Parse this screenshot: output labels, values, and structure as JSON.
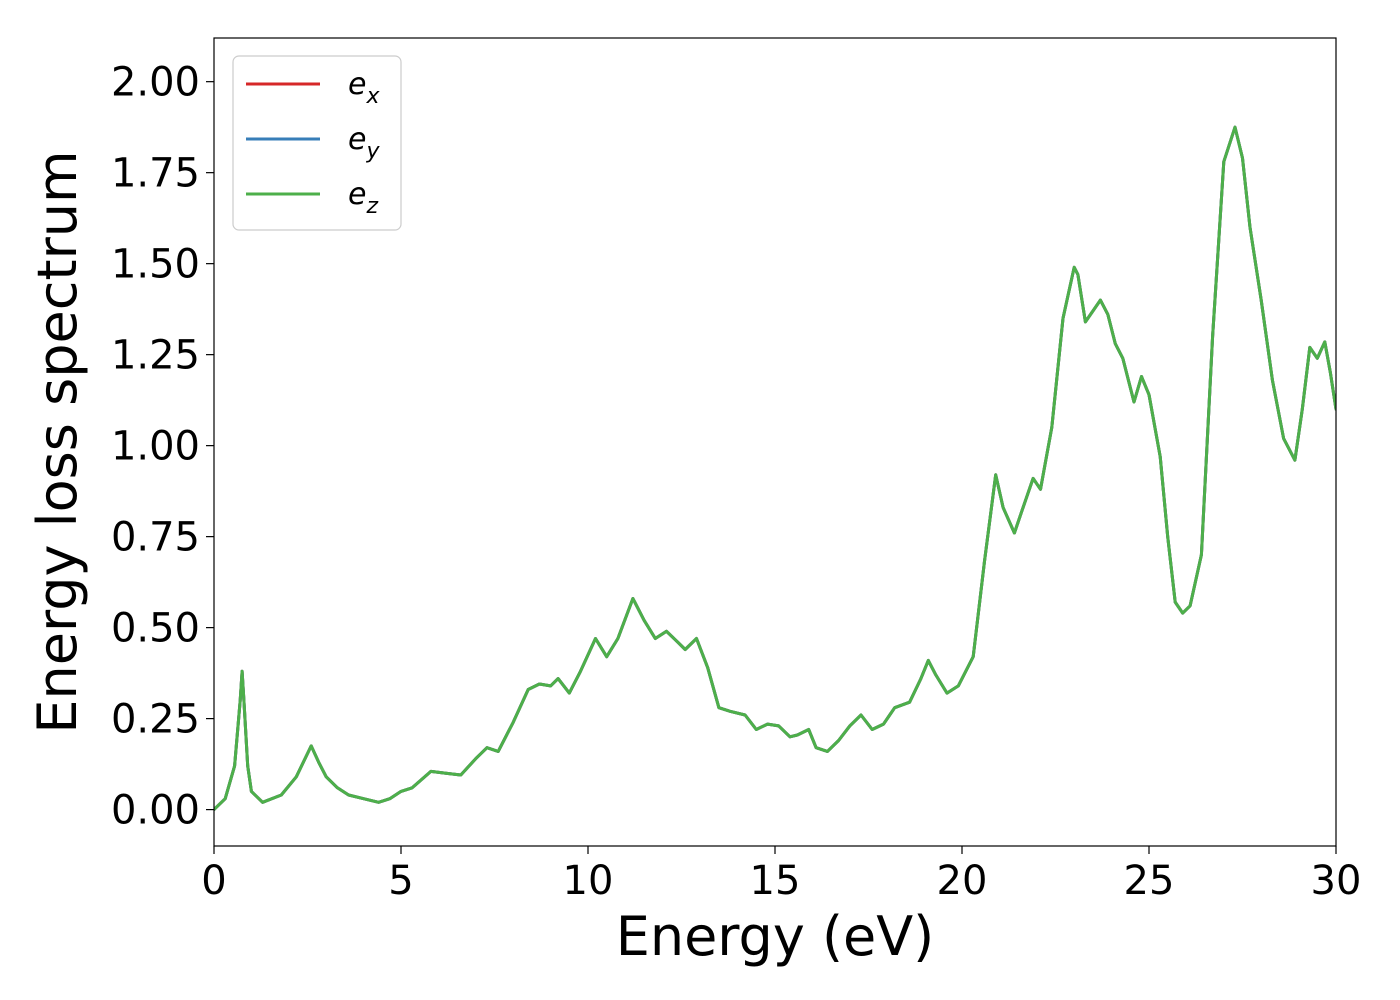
{
  "chart_data": {
    "type": "line",
    "xlabel": "Energy (eV)",
    "ylabel": "Energy loss spectrum",
    "xlim": [
      0,
      30
    ],
    "ylim": [
      -0.1,
      2.12
    ],
    "x_ticks": [
      "0",
      "5",
      "10",
      "15",
      "20",
      "25",
      "30"
    ],
    "y_ticks": [
      "0.00",
      "0.25",
      "0.50",
      "0.75",
      "1.00",
      "1.25",
      "1.50",
      "1.75",
      "2.00"
    ],
    "grid": false,
    "legend_position": "top-left",
    "x": [
      0,
      0.3,
      0.55,
      0.7,
      0.75,
      0.8,
      0.9,
      1.0,
      1.3,
      1.8,
      2.2,
      2.6,
      2.8,
      3.0,
      3.3,
      3.6,
      4.0,
      4.4,
      4.7,
      5.0,
      5.3,
      5.8,
      6.2,
      6.6,
      7.0,
      7.3,
      7.6,
      8.0,
      8.4,
      8.7,
      9.0,
      9.2,
      9.5,
      9.8,
      10.2,
      10.5,
      10.8,
      11.2,
      11.5,
      11.8,
      12.1,
      12.4,
      12.6,
      12.9,
      13.2,
      13.5,
      13.8,
      14.2,
      14.5,
      14.8,
      15.1,
      15.4,
      15.6,
      15.9,
      16.1,
      16.4,
      16.7,
      17.0,
      17.3,
      17.6,
      17.9,
      18.2,
      18.6,
      18.9,
      19.1,
      19.3,
      19.6,
      19.9,
      20.3,
      20.6,
      20.9,
      21.1,
      21.4,
      21.6,
      21.9,
      22.1,
      22.4,
      22.7,
      23.0,
      23.1,
      23.3,
      23.5,
      23.7,
      23.9,
      24.1,
      24.3,
      24.6,
      24.8,
      25.0,
      25.3,
      25.5,
      25.7,
      25.9,
      26.1,
      26.4,
      26.7,
      27.0,
      27.3,
      27.5,
      27.7,
      28.0,
      28.3,
      28.6,
      28.9,
      29.1,
      29.3,
      29.5,
      29.7,
      29.85,
      30.0
    ],
    "series": [
      {
        "name": "e_x",
        "color": "#d62728",
        "values": [
          0.0,
          0.03,
          0.12,
          0.3,
          0.38,
          0.3,
          0.12,
          0.05,
          0.02,
          0.04,
          0.09,
          0.175,
          0.13,
          0.09,
          0.06,
          0.04,
          0.03,
          0.02,
          0.03,
          0.05,
          0.06,
          0.105,
          0.1,
          0.095,
          0.14,
          0.17,
          0.16,
          0.24,
          0.33,
          0.345,
          0.34,
          0.36,
          0.32,
          0.38,
          0.47,
          0.42,
          0.47,
          0.58,
          0.52,
          0.47,
          0.49,
          0.46,
          0.44,
          0.47,
          0.39,
          0.28,
          0.27,
          0.26,
          0.22,
          0.235,
          0.23,
          0.2,
          0.205,
          0.22,
          0.17,
          0.16,
          0.19,
          0.23,
          0.26,
          0.22,
          0.235,
          0.28,
          0.295,
          0.36,
          0.41,
          0.37,
          0.32,
          0.34,
          0.42,
          0.68,
          0.92,
          0.83,
          0.76,
          0.82,
          0.91,
          0.88,
          1.05,
          1.35,
          1.49,
          1.47,
          1.34,
          1.37,
          1.4,
          1.36,
          1.28,
          1.24,
          1.12,
          1.19,
          1.14,
          0.97,
          0.75,
          0.57,
          0.54,
          0.56,
          0.7,
          1.3,
          1.78,
          1.875,
          1.79,
          1.6,
          1.4,
          1.18,
          1.02,
          0.96,
          1.1,
          1.27,
          1.24,
          1.285,
          1.2,
          1.1
        ]
      },
      {
        "name": "e_y",
        "color": "#377eb8",
        "values": [
          0.0,
          0.03,
          0.12,
          0.3,
          0.38,
          0.3,
          0.12,
          0.05,
          0.02,
          0.04,
          0.09,
          0.175,
          0.13,
          0.09,
          0.06,
          0.04,
          0.03,
          0.02,
          0.03,
          0.05,
          0.06,
          0.105,
          0.1,
          0.095,
          0.14,
          0.17,
          0.16,
          0.24,
          0.33,
          0.345,
          0.34,
          0.36,
          0.32,
          0.38,
          0.47,
          0.42,
          0.47,
          0.58,
          0.52,
          0.47,
          0.49,
          0.46,
          0.44,
          0.47,
          0.39,
          0.28,
          0.27,
          0.26,
          0.22,
          0.235,
          0.23,
          0.2,
          0.205,
          0.22,
          0.17,
          0.16,
          0.19,
          0.23,
          0.26,
          0.22,
          0.235,
          0.28,
          0.295,
          0.36,
          0.41,
          0.37,
          0.32,
          0.34,
          0.42,
          0.68,
          0.92,
          0.83,
          0.76,
          0.82,
          0.91,
          0.88,
          1.05,
          1.35,
          1.49,
          1.47,
          1.34,
          1.37,
          1.4,
          1.36,
          1.28,
          1.24,
          1.12,
          1.19,
          1.14,
          0.97,
          0.75,
          0.57,
          0.54,
          0.56,
          0.7,
          1.3,
          1.78,
          1.875,
          1.79,
          1.6,
          1.4,
          1.18,
          1.02,
          0.96,
          1.1,
          1.27,
          1.24,
          1.285,
          1.2,
          1.1
        ]
      },
      {
        "name": "e_z",
        "color": "#4daf4a",
        "values": [
          0.0,
          0.03,
          0.12,
          0.3,
          0.38,
          0.3,
          0.12,
          0.05,
          0.02,
          0.04,
          0.09,
          0.175,
          0.13,
          0.09,
          0.06,
          0.04,
          0.03,
          0.02,
          0.03,
          0.05,
          0.06,
          0.105,
          0.1,
          0.095,
          0.14,
          0.17,
          0.16,
          0.24,
          0.33,
          0.345,
          0.34,
          0.36,
          0.32,
          0.38,
          0.47,
          0.42,
          0.47,
          0.58,
          0.52,
          0.47,
          0.49,
          0.46,
          0.44,
          0.47,
          0.39,
          0.28,
          0.27,
          0.26,
          0.22,
          0.235,
          0.23,
          0.2,
          0.205,
          0.22,
          0.17,
          0.16,
          0.19,
          0.23,
          0.26,
          0.22,
          0.235,
          0.28,
          0.295,
          0.36,
          0.41,
          0.37,
          0.32,
          0.34,
          0.42,
          0.68,
          0.92,
          0.83,
          0.76,
          0.82,
          0.91,
          0.88,
          1.05,
          1.35,
          1.49,
          1.47,
          1.34,
          1.37,
          1.4,
          1.36,
          1.28,
          1.24,
          1.12,
          1.19,
          1.14,
          0.97,
          0.75,
          0.57,
          0.54,
          0.56,
          0.7,
          1.3,
          1.78,
          1.875,
          1.79,
          1.6,
          1.4,
          1.18,
          1.02,
          0.96,
          1.1,
          1.27,
          1.24,
          1.285,
          1.2,
          1.1
        ]
      }
    ],
    "legend": [
      {
        "base": "e",
        "sub": "x",
        "color": "#d62728"
      },
      {
        "base": "e",
        "sub": "y",
        "color": "#377eb8"
      },
      {
        "base": "e",
        "sub": "z",
        "color": "#4daf4a"
      }
    ]
  }
}
